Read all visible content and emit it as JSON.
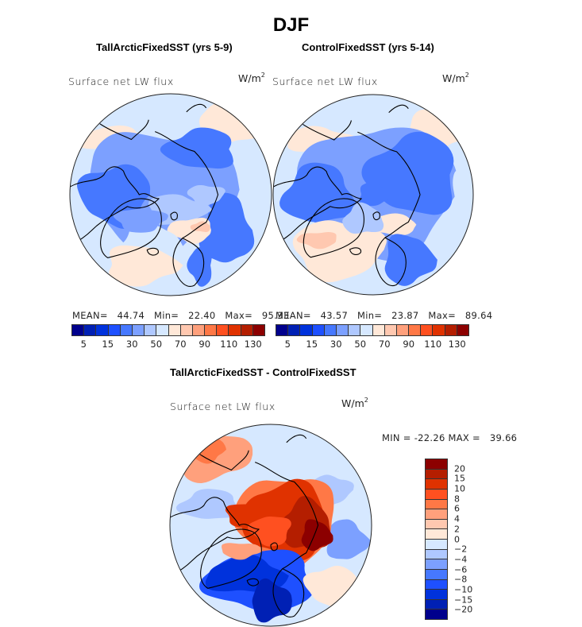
{
  "chart_data": [
    {
      "type": "heatmap",
      "title": "TallArcticFixedSST (yrs 5-9)",
      "field": "Surface net LW flux",
      "units": "W/m2",
      "projection": "north-polar-stereographic",
      "stats": {
        "mean_label": "MEAN=",
        "mean": "44.74",
        "min_label": "Min=",
        "min": "22.40",
        "max_label": "Max=",
        "max": "95.33"
      },
      "colorbar": {
        "orientation": "horizontal",
        "tick_labels": [
          "5",
          "15",
          "30",
          "50",
          "70",
          "90",
          "110",
          "130"
        ],
        "colors": [
          "#00008c",
          "#0020b4",
          "#0032dc",
          "#1e50ff",
          "#4678ff",
          "#7ca0ff",
          "#afc8ff",
          "#d6e8ff",
          "#ffe8d8",
          "#ffc8b0",
          "#ffa07c",
          "#ff7846",
          "#ff5020",
          "#e03200",
          "#b41e00",
          "#8c0000"
        ]
      },
      "regions_summary": "Mostly blue (30-50 W/m2) over Arctic; light red (60-80) over Barents/Kara Sea and N. Atlantic"
    },
    {
      "type": "heatmap",
      "title": "ControlFixedSST (yrs 5-14)",
      "field": "Surface net LW flux",
      "units": "W/m2",
      "projection": "north-polar-stereographic",
      "stats": {
        "mean_label": "MEAN=",
        "mean": "43.57",
        "min_label": "Min=",
        "min": "23.87",
        "max_label": "Max=",
        "max": "89.64"
      },
      "colorbar": {
        "orientation": "horizontal",
        "tick_labels": [
          "5",
          "15",
          "30",
          "50",
          "70",
          "90",
          "110",
          "130"
        ],
        "colors": [
          "#00008c",
          "#0020b4",
          "#0032dc",
          "#1e50ff",
          "#4678ff",
          "#7ca0ff",
          "#afc8ff",
          "#d6e8ff",
          "#ffe8d8",
          "#ffc8b0",
          "#ffa07c",
          "#ff7846",
          "#ff5020",
          "#e03200",
          "#b41e00",
          "#8c0000"
        ]
      },
      "regions_summary": "Mostly blue (30-50 W/m2) over Arctic and Siberia; light red (60-80) over N. Atlantic/Greenland Sea"
    },
    {
      "type": "heatmap",
      "title": "TallArcticFixedSST - ControlFixedSST",
      "field": "Surface net LW flux",
      "units": "W/m2",
      "projection": "north-polar-stereographic",
      "stats": {
        "min_label": "MIN =",
        "min": "-22.26",
        "max_label": "MAX =",
        "max": "39.66"
      },
      "colorbar": {
        "orientation": "vertical",
        "tick_labels": [
          "20",
          "15",
          "10",
          "8",
          "6",
          "4",
          "2",
          "0",
          "-2",
          "-4",
          "-6",
          "-8",
          "-10",
          "-15",
          "-20"
        ],
        "colors": [
          "#8c0000",
          "#b41e00",
          "#e03200",
          "#ff5020",
          "#ff7846",
          "#ffa07c",
          "#ffc8b0",
          "#ffe8d8",
          "#d6e8ff",
          "#afc8ff",
          "#7ca0ff",
          "#4678ff",
          "#1e50ff",
          "#0032dc",
          "#0020b4",
          "#00008c"
        ]
      },
      "regions_summary": "Strong positive (10 to >20) over central Arctic/Siberia/Canadian Archipelago; strong negative (-10 to -20) over N. Atlantic/Greenland Sea; weak elsewhere"
    }
  ],
  "page": {
    "main_title": "DJF",
    "panels": [
      {
        "title": "TallArcticFixedSST (yrs 5-9)",
        "field": "Surface net LW flux",
        "units_base": "W/m",
        "units_exp": "2",
        "stats": {
          "mean_label": "MEAN=",
          "mean": "44.74",
          "min_label": "Min=",
          "min": "22.40",
          "max_label": "Max=",
          "max": "95.33"
        }
      },
      {
        "title": "ControlFixedSST (yrs 5-14)",
        "field": "Surface net LW flux",
        "units_base": "W/m",
        "units_exp": "2",
        "stats": {
          "mean_label": "MEAN=",
          "mean": "43.57",
          "min_label": "Min=",
          "min": "23.87",
          "max_label": "Max=",
          "max": "89.64"
        }
      },
      {
        "title": "TallArcticFixedSST - ControlFixedSST",
        "field": "Surface net LW flux",
        "units_base": "W/m",
        "units_exp": "2",
        "stats": {
          "min_label": "MIN =",
          "min": "-22.26",
          "max_label": "MAX =",
          "max": "39.66"
        }
      }
    ]
  }
}
